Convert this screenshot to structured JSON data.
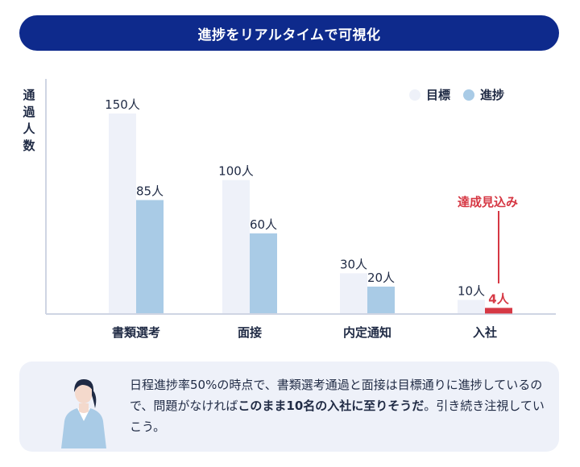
{
  "banner": {
    "title": "進捗をリアルタイムで可視化"
  },
  "chart_data": {
    "type": "bar",
    "title": "進捗をリアルタイムで可視化",
    "ylabel": "通過人数",
    "xlabel": "",
    "categories": [
      "書類選考",
      "面接",
      "内定通知",
      "入社"
    ],
    "series": [
      {
        "name": "目標",
        "values": [
          150,
          100,
          30,
          10
        ],
        "labels": [
          "150人",
          "100人",
          "30人",
          "10人"
        ]
      },
      {
        "name": "進捗",
        "values": [
          85,
          60,
          20,
          4
        ],
        "labels": [
          "85人",
          "60人",
          "20人",
          "4人"
        ]
      }
    ],
    "ylim": [
      0,
      160
    ],
    "annotation": "達成見込み",
    "legend_position": "top-right",
    "grid": false,
    "colors": {
      "target": "#eef1f9",
      "progress": "#a9cbe6",
      "highlight": "#d63844",
      "text": "#1f2a44"
    }
  },
  "legend": [
    {
      "label": "目標",
      "color": "#eef1f9"
    },
    {
      "label": "進捗",
      "color": "#a9cbe6"
    }
  ],
  "comment": {
    "part1": "日程進捗率50%の時点で、書類選考通過と面接は目標通りに進捗しているので、問題がなければ",
    "bold": "このまま10名の入社に至りそうだ",
    "part2": "。引き続き注視していこう。"
  }
}
